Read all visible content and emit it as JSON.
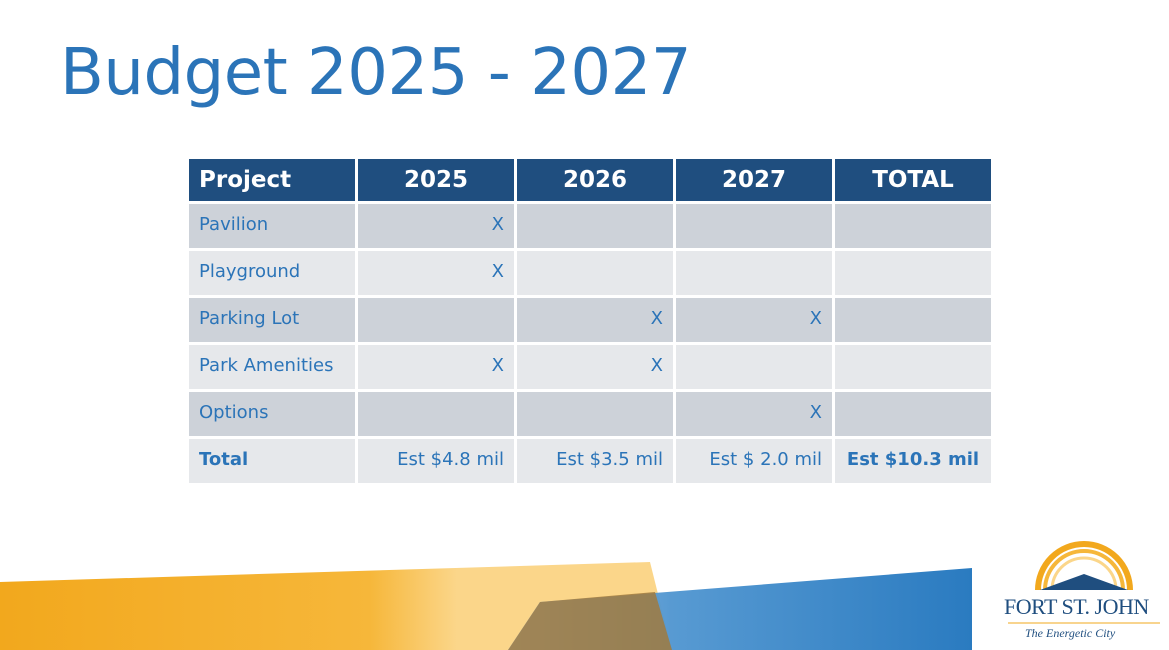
{
  "slide": {
    "title": "Budget 2025 - 2027"
  },
  "table": {
    "headers": [
      "Project",
      "2025",
      "2026",
      "2027",
      "TOTAL"
    ],
    "rows": [
      {
        "project": "Pavilion",
        "y2025": "X",
        "y2026": "",
        "y2027": "",
        "total": ""
      },
      {
        "project": "Playground",
        "y2025": "X",
        "y2026": "",
        "y2027": "",
        "total": ""
      },
      {
        "project": "Parking Lot",
        "y2025": "",
        "y2026": "X",
        "y2027": "X",
        "total": ""
      },
      {
        "project": "Park Amenities",
        "y2025": "X",
        "y2026": "X",
        "y2027": "",
        "total": ""
      },
      {
        "project": "Options",
        "y2025": "",
        "y2026": "",
        "y2027": "X",
        "total": ""
      }
    ],
    "total_row": {
      "label": "Total",
      "y2025": "Est $4.8 mil",
      "y2026": "Est $3.5 mil",
      "y2027": "Est $ 2.0 mil",
      "total": "Est $10.3 mil"
    }
  },
  "logo": {
    "wordmark": "FORT ST. JOHN",
    "tagline": "The Energetic City"
  },
  "colors": {
    "title": "#2b74b8",
    "header_bg": "#1f4e7f",
    "row_dark": "#cdd2d9",
    "row_light": "#e6e8eb",
    "accent_orange": "#f2a81d",
    "accent_blue": "#2b74b8"
  }
}
